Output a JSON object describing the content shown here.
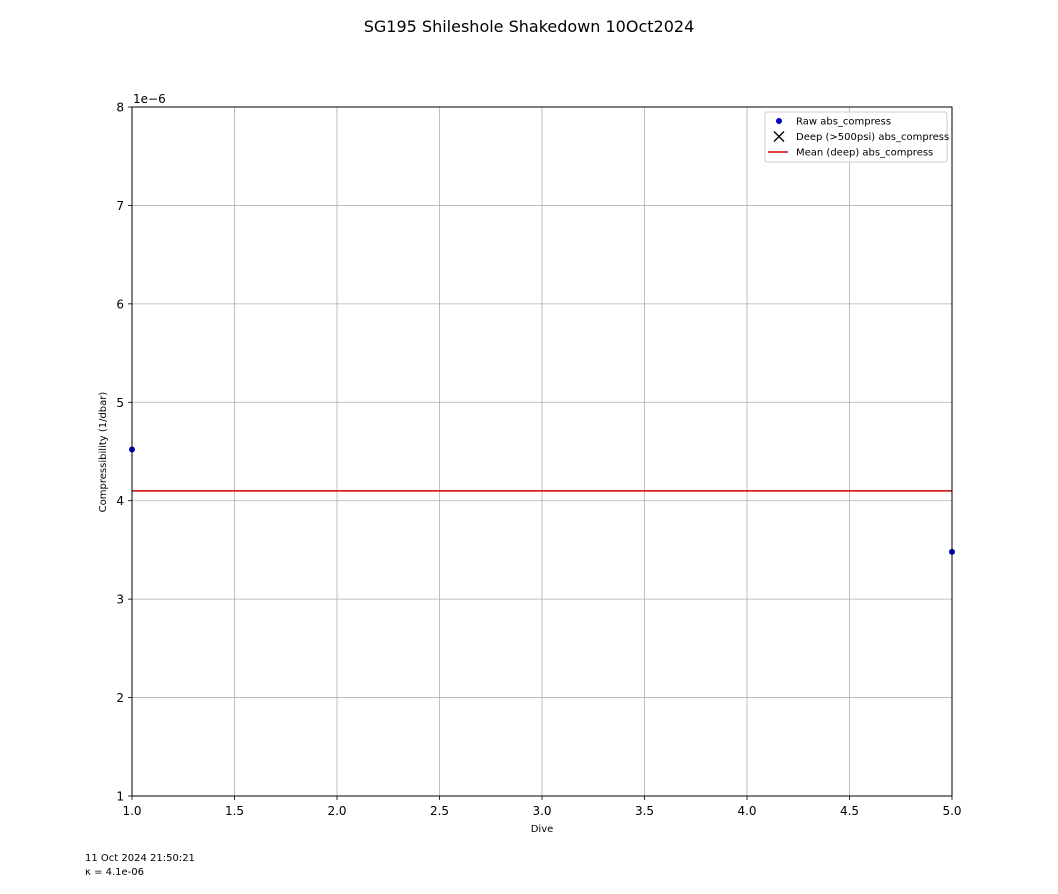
{
  "chart_data": {
    "type": "scatter",
    "title": "SG195 Shileshole Shakedown 10Oct2024",
    "xlabel": "Dive",
    "ylabel": "Compressibility (1/dbar)",
    "xlim": [
      1.0,
      5.0
    ],
    "ylim": [
      1e-06,
      8e-06
    ],
    "x_ticks": [
      1.0,
      1.5,
      2.0,
      2.5,
      3.0,
      3.5,
      4.0,
      4.5,
      5.0
    ],
    "x_tick_labels": [
      "1.0",
      "1.5",
      "2.0",
      "2.5",
      "3.0",
      "3.5",
      "4.0",
      "4.5",
      "5.0"
    ],
    "y_ticks": [
      1e-06,
      2e-06,
      3e-06,
      4e-06,
      5e-06,
      6e-06,
      7e-06,
      8e-06
    ],
    "y_tick_labels": [
      "1",
      "2",
      "3",
      "4",
      "5",
      "6",
      "7",
      "8"
    ],
    "y_offset_label": "1e−6",
    "grid": true,
    "legend_position": "top-right",
    "legend": [
      {
        "label": "Raw abs_compress",
        "marker": "dot",
        "color": "#0000cd"
      },
      {
        "label": "Deep (>500psi) abs_compress",
        "marker": "x",
        "color": "#000000"
      },
      {
        "label": "Mean (deep) abs_compress",
        "marker": "line",
        "color": "#cc0000"
      }
    ],
    "series": [
      {
        "name": "Raw abs_compress",
        "kind": "points",
        "color": "#0000cd",
        "x": [
          1,
          5
        ],
        "y": [
          4.52e-06,
          3.48e-06
        ]
      },
      {
        "name": "Deep (>500psi) abs_compress",
        "kind": "points",
        "color": "#000000",
        "x": [],
        "y": []
      },
      {
        "name": "Mean (deep) abs_compress",
        "kind": "hline",
        "color": "#cc0000",
        "y": 4.1e-06
      }
    ]
  },
  "footer": {
    "timestamp": "11 Oct 2024 21:50:21",
    "kappa": "κ = 4.1e-06"
  }
}
